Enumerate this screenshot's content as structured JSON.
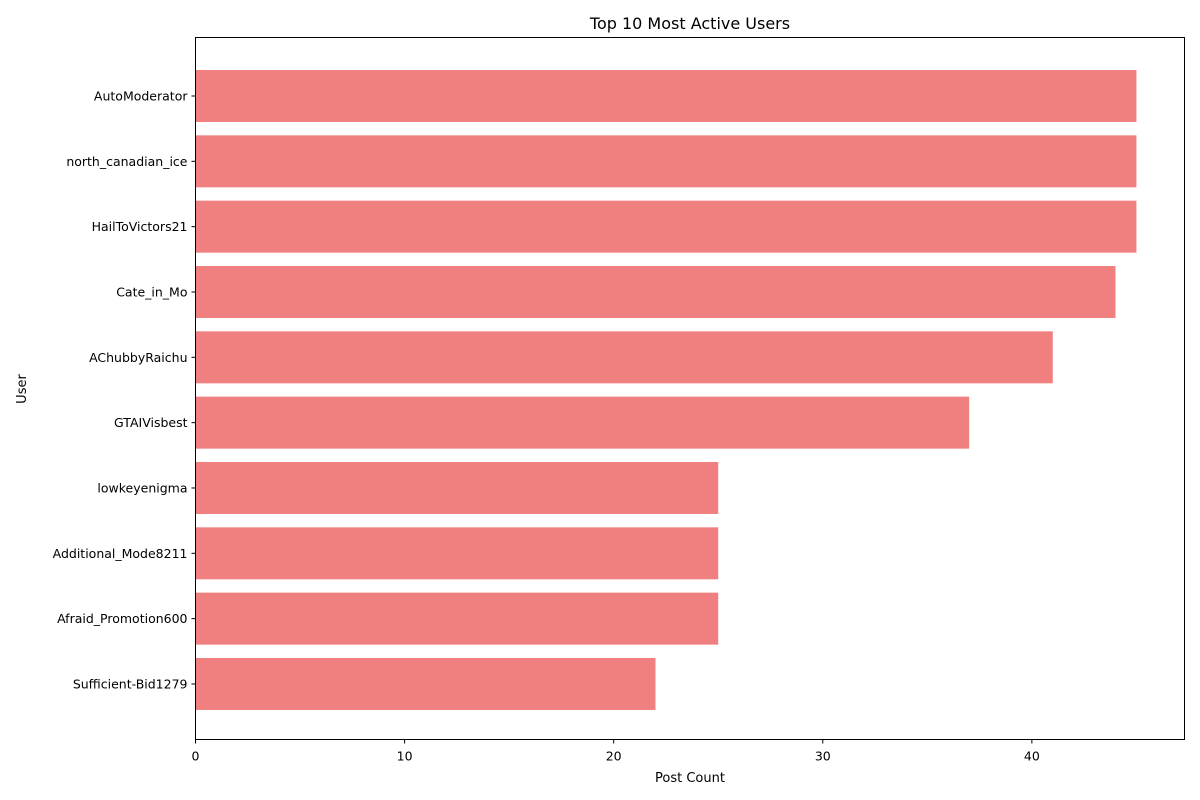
{
  "chart_data": {
    "type": "bar",
    "orientation": "horizontal",
    "title": "Top 10 Most Active Users",
    "xlabel": "Post Count",
    "ylabel": "User",
    "categories": [
      "AutoModerator",
      "north_canadian_ice",
      "HailToVictors21",
      "Cate_in_Mo",
      "AChubbyRaichu",
      "GTAIVisbest",
      "lowkeyenigma",
      "Additional_Mode8211",
      "Afraid_Promotion600",
      "Sufficient-Bid1279"
    ],
    "values": [
      45,
      45,
      45,
      44,
      41,
      37,
      25,
      25,
      25,
      22
    ],
    "xlim": [
      0,
      47.3
    ],
    "xticks": [
      0,
      10,
      20,
      30,
      40
    ],
    "grid": false,
    "legend": "none",
    "bar_color": "#f08080"
  }
}
